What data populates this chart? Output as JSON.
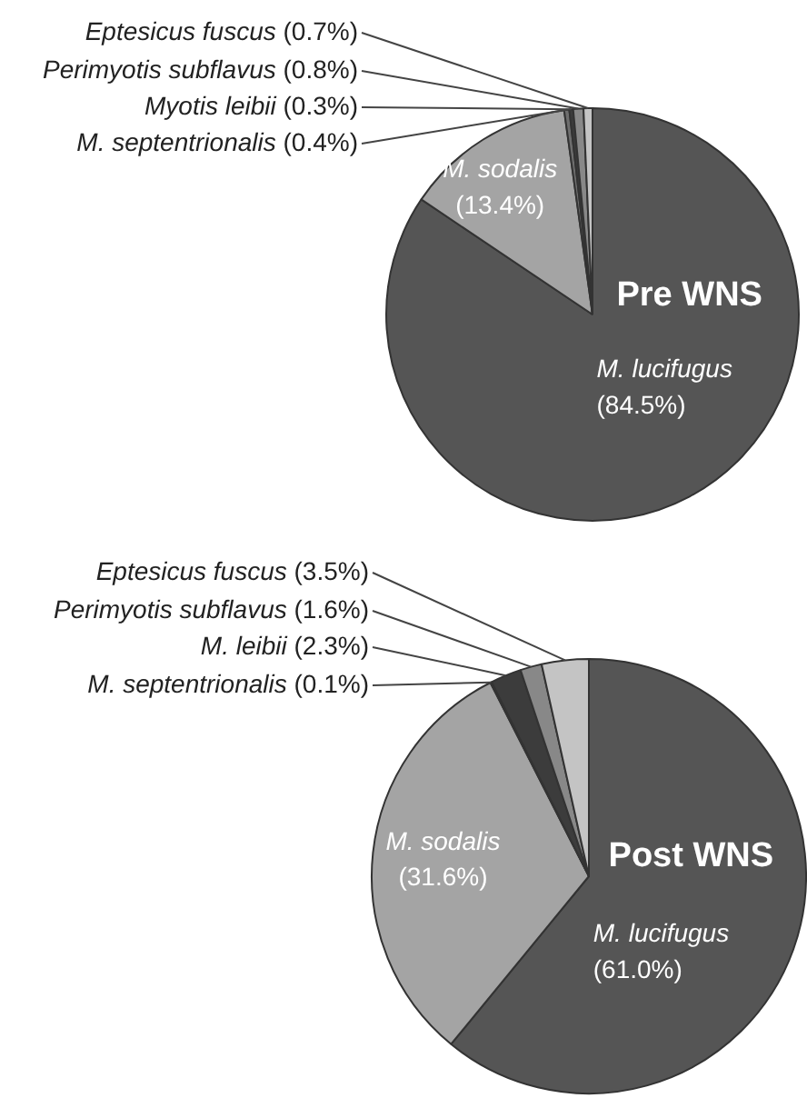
{
  "chart_data": [
    {
      "type": "pie",
      "title": "Pre WNS",
      "categories": [
        "M. lucifugus",
        "M. sodalis",
        "M. septentrionalis",
        "Myotis leibii",
        "Perimyotis subflavus",
        "Eptesicus fuscus"
      ],
      "values": [
        84.5,
        13.4,
        0.4,
        0.3,
        0.8,
        0.7
      ],
      "value_labels": [
        "(84.5%)",
        "(13.4%)",
        "(0.4%)",
        "(0.3%)",
        "(0.8%)",
        "(0.7%)"
      ],
      "colors": [
        "#555555",
        "#a4a4a4",
        "#6e6e6e",
        "#3c3c3c",
        "#888888",
        "#c4c4c4"
      ]
    },
    {
      "type": "pie",
      "title": "Post WNS",
      "categories": [
        "M. lucifugus",
        "M. sodalis",
        "M. septentrionalis",
        "M. leibii",
        "Perimyotis subflavus",
        "Eptesicus fuscus"
      ],
      "values": [
        61.0,
        31.6,
        0.1,
        2.3,
        1.6,
        3.5
      ],
      "value_labels": [
        "(61.0%)",
        "(31.6%)",
        "(0.1%)",
        "(2.3%)",
        "(1.6%)",
        "(3.5%)"
      ],
      "colors": [
        "#555555",
        "#a4a4a4",
        "#6e6e6e",
        "#3c3c3c",
        "#888888",
        "#c4c4c4"
      ]
    }
  ]
}
